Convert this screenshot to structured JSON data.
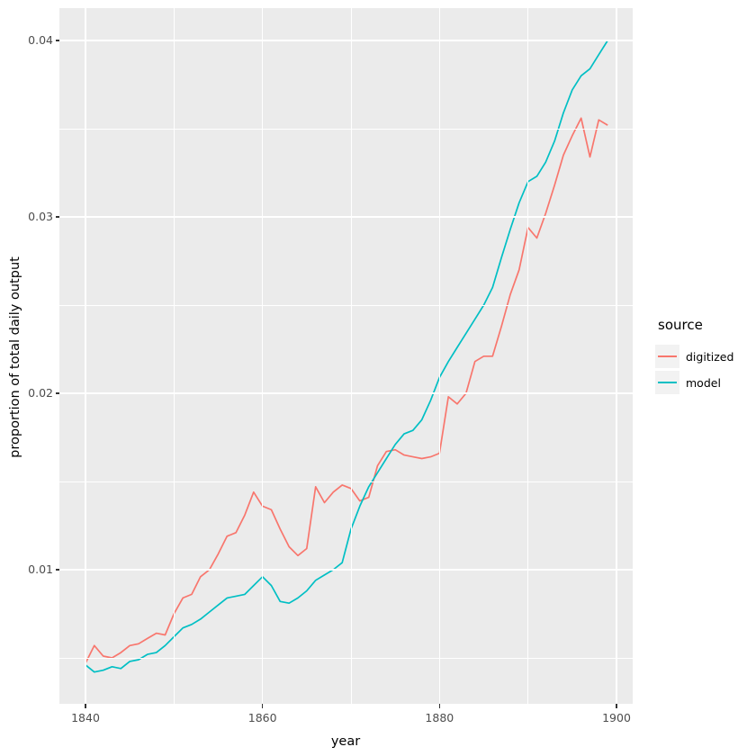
{
  "chart_data": {
    "type": "line",
    "title": "",
    "xlabel": "year",
    "ylabel": "proportion of total daily output",
    "legend": {
      "title": "source",
      "position": "right"
    },
    "panel_bg": "#EBEBEB",
    "grid_color": "#ffffff",
    "x_ticks": [
      1840,
      1860,
      1880,
      1900
    ],
    "x_tick_labels": [
      "1840",
      "1860",
      "1880",
      "1900"
    ],
    "x_minor": [
      1850,
      1870,
      1890
    ],
    "y_ticks": [
      0.01,
      0.02,
      0.03,
      0.04
    ],
    "y_tick_labels": [
      "0.01",
      "0.02",
      "0.03",
      "0.04"
    ],
    "y_minor": [
      0.005,
      0.015,
      0.025,
      0.035
    ],
    "xlim": [
      1837,
      1902
    ],
    "ylim": [
      0.0024,
      0.0418
    ],
    "x": [
      1840,
      1841,
      1842,
      1843,
      1844,
      1845,
      1846,
      1847,
      1848,
      1849,
      1850,
      1851,
      1852,
      1853,
      1854,
      1855,
      1856,
      1857,
      1858,
      1859,
      1860,
      1861,
      1862,
      1863,
      1864,
      1865,
      1866,
      1867,
      1868,
      1869,
      1870,
      1871,
      1872,
      1873,
      1874,
      1875,
      1876,
      1877,
      1878,
      1879,
      1880,
      1881,
      1882,
      1883,
      1884,
      1885,
      1886,
      1887,
      1888,
      1889,
      1890,
      1891,
      1892,
      1893,
      1894,
      1895,
      1896,
      1897,
      1898,
      1899
    ],
    "series": [
      {
        "name": "digitized",
        "color": "#F8766D",
        "values": [
          0.0047,
          0.0057,
          0.0051,
          0.005,
          0.0053,
          0.0057,
          0.0058,
          0.0061,
          0.0064,
          0.0063,
          0.0075,
          0.0084,
          0.0086,
          0.0096,
          0.01,
          0.0109,
          0.0119,
          0.0121,
          0.0131,
          0.0144,
          0.0136,
          0.0134,
          0.0123,
          0.0113,
          0.0108,
          0.0112,
          0.0147,
          0.0138,
          0.0144,
          0.0148,
          0.0146,
          0.0139,
          0.0141,
          0.0159,
          0.0167,
          0.0168,
          0.0165,
          0.0164,
          0.0163,
          0.0164,
          0.0166,
          0.0198,
          0.0194,
          0.02,
          0.0218,
          0.0221,
          0.0221,
          0.0238,
          0.0256,
          0.027,
          0.0294,
          0.0288,
          0.0302,
          0.0318,
          0.0335,
          0.0346,
          0.0356,
          0.0334,
          0.0355,
          0.0352
        ]
      },
      {
        "name": "model",
        "color": "#00BFC4",
        "values": [
          0.0046,
          0.0042,
          0.0043,
          0.0045,
          0.0044,
          0.0048,
          0.0049,
          0.0052,
          0.0053,
          0.0057,
          0.0062,
          0.0067,
          0.0069,
          0.0072,
          0.0076,
          0.008,
          0.0084,
          0.0085,
          0.0086,
          0.0091,
          0.0096,
          0.0091,
          0.0082,
          0.0081,
          0.0084,
          0.0088,
          0.0094,
          0.0097,
          0.01,
          0.0104,
          0.0123,
          0.0136,
          0.0147,
          0.0155,
          0.0163,
          0.0171,
          0.0177,
          0.0179,
          0.0185,
          0.0196,
          0.0209,
          0.0218,
          0.0226,
          0.0234,
          0.0242,
          0.025,
          0.026,
          0.0277,
          0.0293,
          0.0308,
          0.032,
          0.0323,
          0.0331,
          0.0343,
          0.0359,
          0.0372,
          0.038,
          0.0384,
          0.0392,
          0.04
        ]
      }
    ]
  }
}
